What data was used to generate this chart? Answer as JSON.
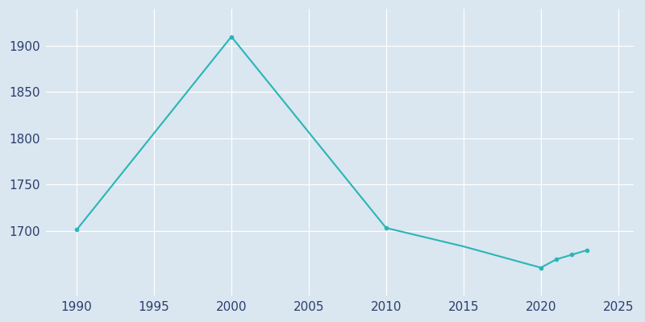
{
  "years": [
    1990,
    2000,
    2010,
    2015,
    2020,
    2021,
    2022,
    2023
  ],
  "population": [
    1701,
    1910,
    1703,
    1683,
    1660,
    1669,
    1674,
    1679
  ],
  "line_color": "#2ab5b5",
  "bg_color": "#dae6f0",
  "plot_bg_color": "#dae6f0",
  "grid_color": "#ffffff",
  "tick_color": "#2c3e6e",
  "xlim": [
    1988,
    2026
  ],
  "ylim": [
    1630,
    1940
  ],
  "xticks": [
    1990,
    1995,
    2000,
    2005,
    2010,
    2015,
    2020,
    2025
  ],
  "yticks": [
    1700,
    1750,
    1800,
    1850,
    1900
  ],
  "marker_years": [
    1990,
    2000,
    2010,
    2020,
    2021,
    2022,
    2023
  ],
  "marker_pops": [
    1701,
    1910,
    1703,
    1660,
    1669,
    1674,
    1679
  ]
}
